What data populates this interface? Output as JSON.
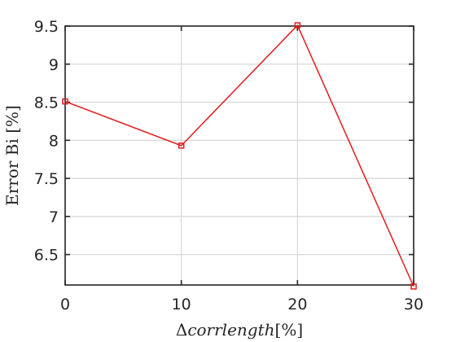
{
  "chart_data": {
    "type": "line",
    "title": "",
    "xlabel": {
      "prefix": "Δ",
      "italic": "corrlength",
      "suffix": "[%]"
    },
    "ylabel": "Error Bi [%]",
    "xlim": [
      0,
      30
    ],
    "ylim": [
      6.1,
      9.5
    ],
    "xticks": [
      0,
      10,
      20,
      30
    ],
    "yticks": [
      6.5,
      7,
      7.5,
      8,
      8.5,
      9,
      9.5
    ],
    "yticklabels": [
      "6.5",
      "7",
      "7.5",
      "8",
      "8.5",
      "9",
      "9.5"
    ],
    "grid": true,
    "series": [
      {
        "color": "#e31a1c",
        "marker": "square",
        "x": [
          0,
          10,
          20,
          30
        ],
        "y": [
          8.51,
          7.93,
          9.51,
          6.08
        ]
      }
    ]
  }
}
